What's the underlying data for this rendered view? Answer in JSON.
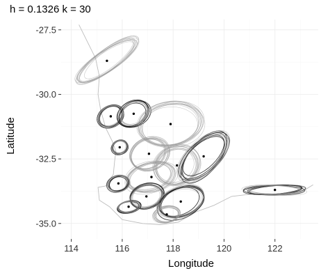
{
  "chart_data": {
    "type": "scatter",
    "title": "h = 0.1326 k = 30",
    "xlabel": "Longitude",
    "ylabel": "Latitude",
    "xlim": [
      113.6,
      123.7
    ],
    "ylim": [
      -35.6,
      -27.1
    ],
    "xticks": [
      114,
      116,
      118,
      120,
      122
    ],
    "yticks": [
      -27.5,
      -30.0,
      -32.5,
      -35.0
    ],
    "xtick_labels": [
      "114",
      "116",
      "118",
      "120",
      "122"
    ],
    "ytick_labels": [
      "-27.5",
      "-30.0",
      "-32.5",
      "-35.0"
    ],
    "grid": true,
    "legend": "none",
    "colors": {
      "background": "#ffffff",
      "grid": "#ebebeb",
      "contour_light": "#9a9a9a",
      "contour_dark": "#1a1a1a",
      "center": "#000000"
    },
    "centers": [
      {
        "lon": 115.4,
        "lat": -28.7,
        "rx": 1.35,
        "ry": 0.38,
        "angle": -35,
        "bold": false
      },
      {
        "lon": 115.55,
        "lat": -30.85,
        "rx": 0.5,
        "ry": 0.38,
        "angle": -30,
        "bold": true
      },
      {
        "lon": 116.45,
        "lat": -30.75,
        "rx": 0.62,
        "ry": 0.45,
        "angle": -30,
        "bold": true
      },
      {
        "lon": 117.9,
        "lat": -31.15,
        "rx": 1.2,
        "ry": 0.8,
        "angle": -10,
        "bold": false
      },
      {
        "lon": 115.9,
        "lat": -32.05,
        "rx": 0.3,
        "ry": 0.25,
        "angle": -20,
        "bold": true
      },
      {
        "lon": 117.05,
        "lat": -32.3,
        "rx": 0.75,
        "ry": 0.6,
        "angle": -25,
        "bold": false
      },
      {
        "lon": 118.15,
        "lat": -32.75,
        "rx": 0.85,
        "ry": 0.7,
        "angle": -20,
        "bold": false
      },
      {
        "lon": 119.2,
        "lat": -32.4,
        "rx": 1.15,
        "ry": 0.55,
        "angle": -45,
        "bold": true
      },
      {
        "lon": 117.15,
        "lat": -33.2,
        "rx": 0.95,
        "ry": 0.55,
        "angle": -15,
        "bold": false
      },
      {
        "lon": 115.85,
        "lat": -33.45,
        "rx": 0.42,
        "ry": 0.3,
        "angle": -15,
        "bold": true
      },
      {
        "lon": 116.95,
        "lat": -33.95,
        "rx": 0.65,
        "ry": 0.45,
        "angle": -15,
        "bold": true
      },
      {
        "lon": 118.3,
        "lat": -34.15,
        "rx": 0.9,
        "ry": 0.55,
        "angle": -20,
        "bold": true
      },
      {
        "lon": 116.25,
        "lat": -34.35,
        "rx": 0.45,
        "ry": 0.22,
        "angle": -10,
        "bold": true
      },
      {
        "lon": 117.75,
        "lat": -34.65,
        "rx": 0.5,
        "ry": 0.3,
        "angle": -10,
        "bold": false
      },
      {
        "lon": 122.0,
        "lat": -33.7,
        "rx": 1.15,
        "ry": 0.18,
        "angle": 0,
        "bold": true
      }
    ],
    "coastline": [
      [
        114.3,
        -27.3
      ],
      [
        114.65,
        -28.0
      ],
      [
        114.95,
        -28.6
      ],
      [
        115.1,
        -29.3
      ],
      [
        115.05,
        -30.0
      ],
      [
        115.15,
        -30.6
      ],
      [
        115.35,
        -31.3
      ],
      [
        115.6,
        -31.8
      ],
      [
        115.75,
        -32.2
      ],
      [
        115.7,
        -32.6
      ],
      [
        115.65,
        -33.1
      ],
      [
        115.35,
        -33.55
      ],
      [
        115.05,
        -33.6
      ],
      [
        115.1,
        -34.1
      ],
      [
        115.5,
        -34.35
      ],
      [
        116.0,
        -34.85
      ],
      [
        116.8,
        -35.0
      ],
      [
        117.5,
        -35.05
      ],
      [
        118.2,
        -34.95
      ],
      [
        118.9,
        -34.55
      ],
      [
        119.6,
        -34.3
      ],
      [
        120.3,
        -33.95
      ],
      [
        121.2,
        -33.85
      ],
      [
        122.1,
        -33.9
      ],
      [
        123.0,
        -33.8
      ],
      [
        123.5,
        -33.5
      ]
    ]
  }
}
